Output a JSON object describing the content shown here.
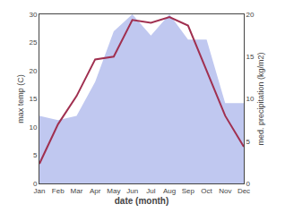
{
  "chart_data": {
    "type": "line",
    "xlabel": "date (month)",
    "ylabel": "max temp (C)",
    "y2label": "med. precipitation (kg/m2)",
    "categories": [
      "Jan",
      "Feb",
      "Mar",
      "Apr",
      "May",
      "Jun",
      "Jul",
      "Aug",
      "Sep",
      "Oct",
      "Nov",
      "Dec"
    ],
    "series": [
      {
        "type": "area",
        "axis": "y2",
        "color": "#c0c8f0",
        "values": [
          8.0,
          7.5,
          8.0,
          12.0,
          18.0,
          20.0,
          17.5,
          20.0,
          17.0,
          17.0,
          9.5,
          9.5
        ]
      },
      {
        "type": "line",
        "color": "#a03050",
        "values": [
          3.5,
          10.5,
          15.5,
          22.0,
          22.5,
          29.0,
          28.5,
          29.5,
          28.0,
          20.0,
          12.0,
          6.5
        ]
      }
    ],
    "ylim": [
      0,
      30
    ],
    "yticks": [
      0,
      5,
      10,
      15,
      20,
      25,
      30
    ],
    "y2lim": [
      0,
      20
    ],
    "y2ticks": [
      0,
      5,
      10,
      15,
      20
    ],
    "grid": false
  }
}
